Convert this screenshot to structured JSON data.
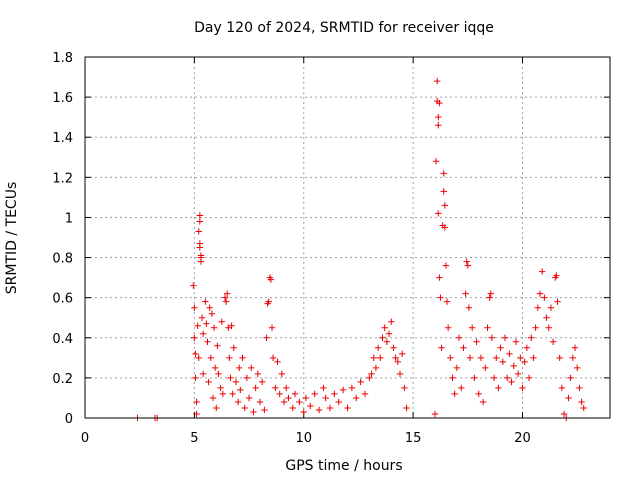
{
  "chart_data": {
    "type": "scatter",
    "title": "Day 120 of 2024, SRMTID for receiver iqqe",
    "xlabel": "GPS time / hours",
    "ylabel": "SRMTID / TECUs",
    "xlim": [
      0,
      24
    ],
    "ylim": [
      0,
      1.8
    ],
    "xticks": [
      0,
      5,
      10,
      15,
      20
    ],
    "xtick_labels": [
      "0",
      "5",
      "10",
      "15",
      "20"
    ],
    "yticks": [
      0,
      0.2,
      0.4,
      0.6,
      0.8,
      1,
      1.2,
      1.4,
      1.6,
      1.8
    ],
    "ytick_labels": [
      "0",
      "0.2",
      "0.4",
      "0.6",
      "0.8",
      "1",
      "1.2",
      "1.4",
      "1.6",
      "1.8"
    ],
    "grid": true,
    "marker": "+",
    "marker_color": "#ee0000",
    "series": [
      {
        "name": "SRMTID",
        "points": [
          [
            2.4,
            0.0
          ],
          [
            3.2,
            0.0
          ],
          [
            3.3,
            0.0
          ],
          [
            4.95,
            0.66
          ],
          [
            5.0,
            0.55
          ],
          [
            5.0,
            0.4
          ],
          [
            5.05,
            0.32
          ],
          [
            5.05,
            0.2
          ],
          [
            5.1,
            0.08
          ],
          [
            5.1,
            0.02
          ],
          [
            5.15,
            0.46
          ],
          [
            5.2,
            0.3
          ],
          [
            5.25,
            1.01
          ],
          [
            5.25,
            0.98
          ],
          [
            5.2,
            0.93
          ],
          [
            5.25,
            0.87
          ],
          [
            5.25,
            0.85
          ],
          [
            5.3,
            0.81
          ],
          [
            5.3,
            0.8
          ],
          [
            5.3,
            0.78
          ],
          [
            5.35,
            0.5
          ],
          [
            5.4,
            0.42
          ],
          [
            5.4,
            0.22
          ],
          [
            5.5,
            0.58
          ],
          [
            5.55,
            0.47
          ],
          [
            5.6,
            0.38
          ],
          [
            5.65,
            0.18
          ],
          [
            5.7,
            0.55
          ],
          [
            5.75,
            0.3
          ],
          [
            5.8,
            0.52
          ],
          [
            5.85,
            0.1
          ],
          [
            5.9,
            0.45
          ],
          [
            5.95,
            0.25
          ],
          [
            6.0,
            0.05
          ],
          [
            6.05,
            0.36
          ],
          [
            6.1,
            0.22
          ],
          [
            6.2,
            0.15
          ],
          [
            6.25,
            0.48
          ],
          [
            6.3,
            0.12
          ],
          [
            6.4,
            0.6
          ],
          [
            6.45,
            0.58
          ],
          [
            6.5,
            0.62
          ],
          [
            6.55,
            0.45
          ],
          [
            6.6,
            0.3
          ],
          [
            6.65,
            0.2
          ],
          [
            6.7,
            0.46
          ],
          [
            6.75,
            0.12
          ],
          [
            6.8,
            0.35
          ],
          [
            6.9,
            0.18
          ],
          [
            7.0,
            0.08
          ],
          [
            7.05,
            0.25
          ],
          [
            7.1,
            0.14
          ],
          [
            7.2,
            0.3
          ],
          [
            7.3,
            0.05
          ],
          [
            7.4,
            0.2
          ],
          [
            7.5,
            0.1
          ],
          [
            7.6,
            0.25
          ],
          [
            7.7,
            0.03
          ],
          [
            7.8,
            0.15
          ],
          [
            7.9,
            0.22
          ],
          [
            8.0,
            0.08
          ],
          [
            8.1,
            0.18
          ],
          [
            8.2,
            0.04
          ],
          [
            8.3,
            0.4
          ],
          [
            8.35,
            0.57
          ],
          [
            8.4,
            0.58
          ],
          [
            8.45,
            0.7
          ],
          [
            8.5,
            0.69
          ],
          [
            8.55,
            0.45
          ],
          [
            8.6,
            0.3
          ],
          [
            8.7,
            0.15
          ],
          [
            8.8,
            0.28
          ],
          [
            8.9,
            0.12
          ],
          [
            9.0,
            0.22
          ],
          [
            9.1,
            0.08
          ],
          [
            9.2,
            0.15
          ],
          [
            9.3,
            0.1
          ],
          [
            9.5,
            0.05
          ],
          [
            9.6,
            0.12
          ],
          [
            9.8,
            0.08
          ],
          [
            10.0,
            0.03
          ],
          [
            10.1,
            0.1
          ],
          [
            10.3,
            0.06
          ],
          [
            10.5,
            0.12
          ],
          [
            10.7,
            0.04
          ],
          [
            10.9,
            0.15
          ],
          [
            11.0,
            0.1
          ],
          [
            11.2,
            0.05
          ],
          [
            11.4,
            0.12
          ],
          [
            11.6,
            0.08
          ],
          [
            11.8,
            0.14
          ],
          [
            12.0,
            0.05
          ],
          [
            12.2,
            0.15
          ],
          [
            12.4,
            0.1
          ],
          [
            12.6,
            0.18
          ],
          [
            12.8,
            0.12
          ],
          [
            13.0,
            0.2
          ],
          [
            13.1,
            0.22
          ],
          [
            13.2,
            0.3
          ],
          [
            13.3,
            0.25
          ],
          [
            13.4,
            0.35
          ],
          [
            13.5,
            0.3
          ],
          [
            13.6,
            0.4
          ],
          [
            13.7,
            0.45
          ],
          [
            13.8,
            0.38
          ],
          [
            13.9,
            0.42
          ],
          [
            14.0,
            0.48
          ],
          [
            14.1,
            0.35
          ],
          [
            14.2,
            0.3
          ],
          [
            14.3,
            0.28
          ],
          [
            14.4,
            0.22
          ],
          [
            14.5,
            0.32
          ],
          [
            14.6,
            0.15
          ],
          [
            14.7,
            0.05
          ],
          [
            16.0,
            0.02
          ],
          [
            16.05,
            1.28
          ],
          [
            16.1,
            1.58
          ],
          [
            16.15,
            1.46
          ],
          [
            16.15,
            1.5
          ],
          [
            16.2,
            1.57
          ],
          [
            16.1,
            1.68
          ],
          [
            16.15,
            1.02
          ],
          [
            16.2,
            0.7
          ],
          [
            16.25,
            0.6
          ],
          [
            16.3,
            0.35
          ],
          [
            16.35,
            0.96
          ],
          [
            16.4,
            1.22
          ],
          [
            16.4,
            1.13
          ],
          [
            16.45,
            1.06
          ],
          [
            16.45,
            0.95
          ],
          [
            16.5,
            0.76
          ],
          [
            16.55,
            0.58
          ],
          [
            16.6,
            0.45
          ],
          [
            16.7,
            0.3
          ],
          [
            16.8,
            0.2
          ],
          [
            16.9,
            0.12
          ],
          [
            17.0,
            0.25
          ],
          [
            17.1,
            0.4
          ],
          [
            17.2,
            0.15
          ],
          [
            17.3,
            0.35
          ],
          [
            17.4,
            0.62
          ],
          [
            17.45,
            0.78
          ],
          [
            17.5,
            0.76
          ],
          [
            17.55,
            0.55
          ],
          [
            17.6,
            0.3
          ],
          [
            17.7,
            0.45
          ],
          [
            17.8,
            0.2
          ],
          [
            17.9,
            0.38
          ],
          [
            18.0,
            0.12
          ],
          [
            18.1,
            0.3
          ],
          [
            18.2,
            0.08
          ],
          [
            18.3,
            0.25
          ],
          [
            18.4,
            0.45
          ],
          [
            18.5,
            0.6
          ],
          [
            18.55,
            0.62
          ],
          [
            18.6,
            0.4
          ],
          [
            18.7,
            0.2
          ],
          [
            18.8,
            0.3
          ],
          [
            18.9,
            0.15
          ],
          [
            19.0,
            0.35
          ],
          [
            19.1,
            0.28
          ],
          [
            19.2,
            0.4
          ],
          [
            19.3,
            0.2
          ],
          [
            19.4,
            0.32
          ],
          [
            19.5,
            0.18
          ],
          [
            19.6,
            0.26
          ],
          [
            19.7,
            0.38
          ],
          [
            19.8,
            0.22
          ],
          [
            19.9,
            0.3
          ],
          [
            20.0,
            0.15
          ],
          [
            20.1,
            0.28
          ],
          [
            20.2,
            0.35
          ],
          [
            20.3,
            0.2
          ],
          [
            20.4,
            0.4
          ],
          [
            20.5,
            0.3
          ],
          [
            20.6,
            0.45
          ],
          [
            20.7,
            0.55
          ],
          [
            20.8,
            0.62
          ],
          [
            20.9,
            0.73
          ],
          [
            21.0,
            0.6
          ],
          [
            21.1,
            0.5
          ],
          [
            21.2,
            0.45
          ],
          [
            21.3,
            0.55
          ],
          [
            21.4,
            0.38
          ],
          [
            21.5,
            0.7
          ],
          [
            21.55,
            0.71
          ],
          [
            21.6,
            0.58
          ],
          [
            21.7,
            0.3
          ],
          [
            21.8,
            0.15
          ],
          [
            21.9,
            0.02
          ],
          [
            22.0,
            0.0
          ],
          [
            22.1,
            0.1
          ],
          [
            22.2,
            0.2
          ],
          [
            22.3,
            0.3
          ],
          [
            22.4,
            0.35
          ],
          [
            22.5,
            0.25
          ],
          [
            22.6,
            0.15
          ],
          [
            22.7,
            0.08
          ],
          [
            22.8,
            0.05
          ]
        ]
      }
    ]
  }
}
